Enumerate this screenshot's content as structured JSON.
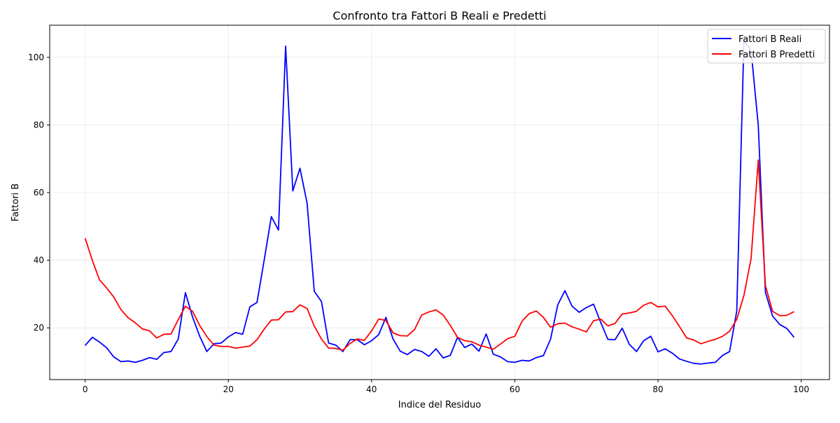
{
  "chart_data": {
    "type": "line",
    "title": "Confronto tra Fattori B Reali e Predetti",
    "xlabel": "Indice del Residuo",
    "ylabel": "Fattori B",
    "xlim": [
      -4.95,
      103.95
    ],
    "ylim": [
      4.7,
      109.5
    ],
    "xticks": [
      0,
      20,
      40,
      60,
      80,
      100
    ],
    "yticks": [
      20,
      40,
      60,
      80,
      100
    ],
    "grid": true,
    "legend_position": "top-right",
    "x": [
      0,
      1,
      2,
      3,
      4,
      5,
      6,
      7,
      8,
      9,
      10,
      11,
      12,
      13,
      14,
      15,
      16,
      17,
      18,
      19,
      20,
      21,
      22,
      23,
      24,
      25,
      26,
      27,
      28,
      29,
      30,
      31,
      32,
      33,
      34,
      35,
      36,
      37,
      38,
      39,
      40,
      41,
      42,
      43,
      44,
      45,
      46,
      47,
      48,
      49,
      50,
      51,
      52,
      53,
      54,
      55,
      56,
      57,
      58,
      59,
      60,
      61,
      62,
      63,
      64,
      65,
      66,
      67,
      68,
      69,
      70,
      71,
      72,
      73,
      74,
      75,
      76,
      77,
      78,
      79,
      80,
      81,
      82,
      83,
      84,
      85,
      86,
      87,
      88,
      89,
      90,
      91,
      92,
      93,
      94,
      95,
      96,
      97,
      98,
      99
    ],
    "series": [
      {
        "name": "Fattori B Reali",
        "color": "#0000ff",
        "values": [
          14.8,
          17.2,
          15.8,
          14.1,
          11.4,
          10.0,
          10.2,
          9.8,
          10.4,
          11.2,
          10.7,
          12.7,
          13.0,
          16.7,
          30.4,
          23.2,
          17.5,
          13.0,
          15.3,
          15.5,
          17.3,
          18.6,
          18.1,
          26.2,
          27.5,
          40.0,
          52.9,
          48.9,
          103.3,
          60.5,
          67.2,
          56.8,
          30.8,
          27.8,
          15.5,
          14.9,
          13.0,
          16.5,
          16.5,
          15.0,
          16.2,
          18.0,
          23.1,
          16.7,
          13.1,
          12.1,
          13.6,
          13.0,
          11.6,
          13.8,
          11.1,
          11.9,
          17.2,
          14.2,
          15.2,
          13.1,
          18.2,
          12.2,
          11.4,
          10.0,
          9.8,
          10.4,
          10.2,
          11.2,
          11.8,
          16.7,
          26.8,
          31.0,
          26.4,
          24.6,
          26.0,
          27.0,
          21.6,
          16.6,
          16.5,
          19.9,
          15.1,
          13.0,
          16.2,
          17.5,
          12.9,
          13.8,
          12.5,
          10.8,
          10.1,
          9.5,
          9.3,
          9.6,
          9.8,
          11.8,
          13.0,
          25.0,
          105.0,
          102.0,
          80.0,
          30.5,
          23.5,
          21.0,
          19.8,
          17.2
        ]
      },
      {
        "name": "Fattori B Predetti",
        "color": "#ff0000",
        "values": [
          46.5,
          40.0,
          34.2,
          31.8,
          29.1,
          25.4,
          23.0,
          21.5,
          19.7,
          19.1,
          17.0,
          18.1,
          18.2,
          22.4,
          26.4,
          24.9,
          20.7,
          17.4,
          14.9,
          14.5,
          14.5,
          14.0,
          14.3,
          14.6,
          16.5,
          19.6,
          22.3,
          22.4,
          24.7,
          24.8,
          26.8,
          25.7,
          20.5,
          16.7,
          14.0,
          13.9,
          13.4,
          15.4,
          16.7,
          16.3,
          19.1,
          22.6,
          22.2,
          18.5,
          17.7,
          17.6,
          19.5,
          23.8,
          24.7,
          25.3,
          23.8,
          20.7,
          17.2,
          16.2,
          15.9,
          14.9,
          14.3,
          13.7,
          15.2,
          16.8,
          17.5,
          21.9,
          24.2,
          25.0,
          23.1,
          20.2,
          21.2,
          21.4,
          20.3,
          19.6,
          18.8,
          22.1,
          22.6,
          20.6,
          21.3,
          24.1,
          24.4,
          24.9,
          26.7,
          27.5,
          26.2,
          26.4,
          23.6,
          20.4,
          17.0,
          16.4,
          15.3,
          16.0,
          16.6,
          17.5,
          19.0,
          22.5,
          29.6,
          40.5,
          69.6,
          32.5,
          24.9,
          23.6,
          23.7,
          24.8
        ]
      }
    ]
  }
}
